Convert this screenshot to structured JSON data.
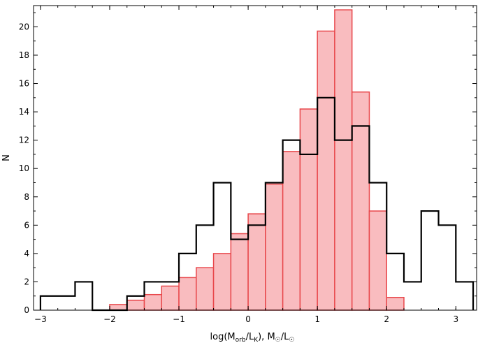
{
  "chart_data": {
    "type": "histogram",
    "xlabel_parts": {
      "pre": "log(M",
      "sub1": "orb",
      "mid": "/L",
      "sub2": "K",
      "post": "),  M",
      "sub3": "☉",
      "slash": "/L",
      "sub4": "☉"
    },
    "ylabel": "N",
    "xlim": [
      -3.1,
      3.3
    ],
    "ylim": [
      0,
      21.5
    ],
    "xticks": [
      -3,
      -2,
      -1,
      0,
      1,
      2,
      3
    ],
    "xtick_labels": [
      "−3",
      "−2",
      "−1",
      "0",
      "1",
      "2",
      "3"
    ],
    "yticks": [
      0,
      2,
      4,
      6,
      8,
      10,
      12,
      14,
      16,
      18,
      20
    ],
    "ytick_labels": [
      "0",
      "2",
      "4",
      "6",
      "8",
      "10",
      "12",
      "14",
      "16",
      "18",
      "20"
    ],
    "grid": false,
    "series": [
      {
        "style": "step-outline",
        "color": "#000000",
        "bin_width": 0.25,
        "bin_edges": [
          -3.0,
          -2.75,
          -2.5,
          -2.25,
          -2.0,
          -1.75,
          -1.5,
          -1.25,
          -1.0,
          -0.75,
          -0.5,
          -0.25,
          0.0,
          0.25,
          0.5,
          0.75,
          1.0,
          1.25,
          1.5,
          1.75,
          2.0,
          2.25,
          2.5,
          2.75,
          3.0,
          3.25
        ],
        "counts": [
          1,
          1,
          2,
          0,
          0,
          1,
          2,
          2,
          4,
          6,
          9,
          5,
          6,
          9,
          12,
          11,
          15,
          12,
          13,
          9,
          4,
          2,
          7,
          6,
          2
        ]
      },
      {
        "style": "filled-step",
        "color": "#e8474b",
        "fill": "#f9bcbf",
        "bin_width": 0.25,
        "bin_edges": [
          -2.0,
          -1.75,
          -1.5,
          -1.25,
          -1.0,
          -0.75,
          -0.5,
          -0.25,
          0.0,
          0.25,
          0.5,
          0.75,
          1.0,
          1.25,
          1.5,
          1.75,
          2.0,
          2.25
        ],
        "counts": [
          0.4,
          0.7,
          1.1,
          1.7,
          2.3,
          3.0,
          4.0,
          5.4,
          6.8,
          8.9,
          11.2,
          14.2,
          19.7,
          21.2,
          15.4,
          7.0,
          0.9
        ]
      }
    ]
  }
}
